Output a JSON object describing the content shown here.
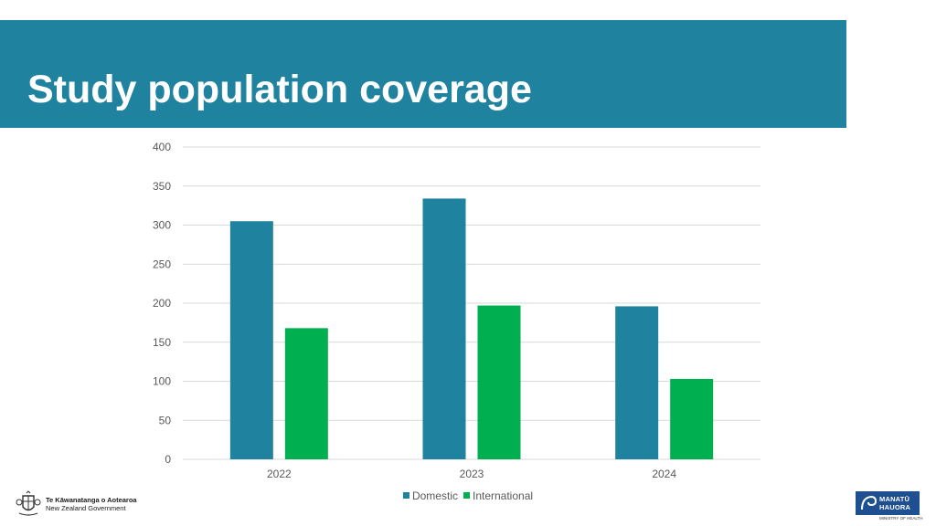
{
  "header": {
    "title": "Study population coverage"
  },
  "colors": {
    "banner": "#1f83a0",
    "domestic": "#1f83a0",
    "international": "#00b050"
  },
  "chart_data": {
    "type": "bar",
    "title": "",
    "xlabel": "",
    "ylabel": "",
    "categories": [
      "2022",
      "2023",
      "2024"
    ],
    "series": [
      {
        "name": "Domestic",
        "values": [
          305,
          334,
          196
        ],
        "color": "#1f83a0"
      },
      {
        "name": "International",
        "values": [
          168,
          197,
          103
        ],
        "color": "#00b050"
      }
    ],
    "ylim": [
      0,
      400
    ],
    "yticks": [
      0,
      50,
      100,
      150,
      200,
      250,
      300,
      350,
      400
    ],
    "grid": true,
    "legend_position": "bottom"
  },
  "footer": {
    "left_logo_line1": "Te Kāwanatanga o Aotearoa",
    "left_logo_line2": "New Zealand Government",
    "right_logo_line1": "MANATŪ",
    "right_logo_line2": "HAUORA",
    "right_logo_line3": "MINISTRY OF HEALTH"
  },
  "icons": {
    "left_logo": "nz-coat-of-arms-icon",
    "right_logo": "manatu-hauora-koru-icon"
  }
}
